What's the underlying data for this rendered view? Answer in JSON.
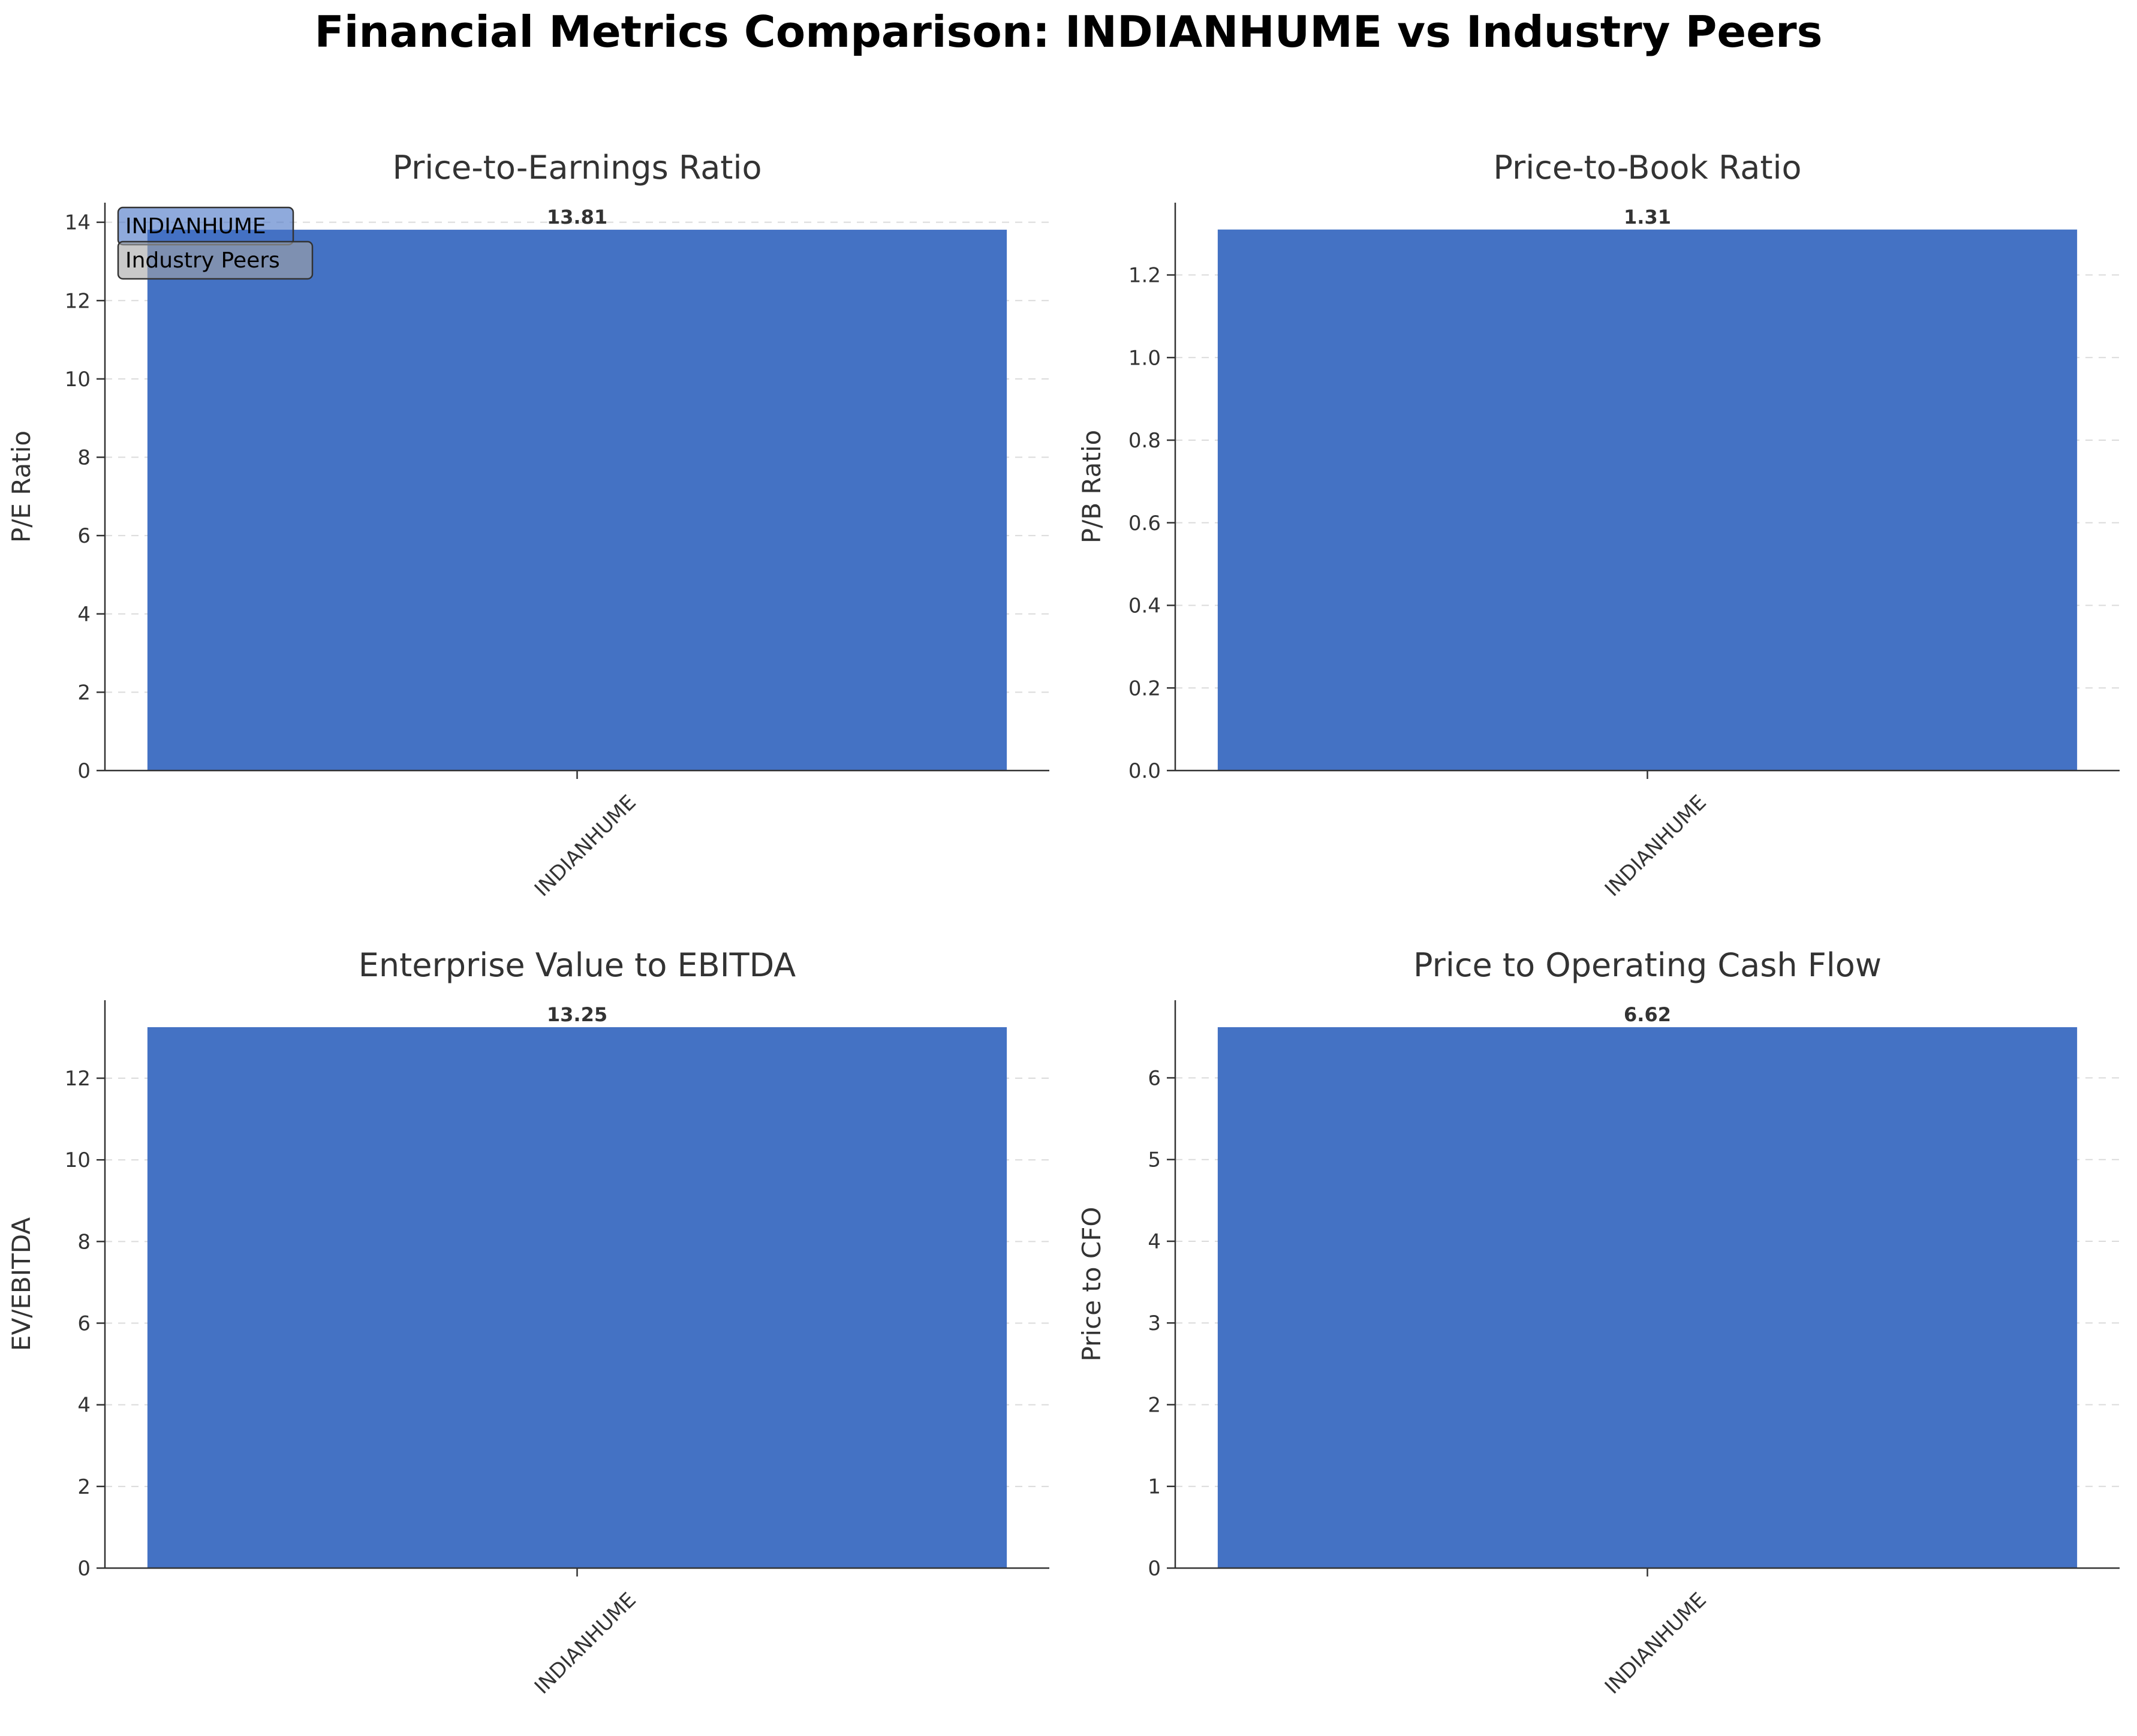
{
  "figure_title": "Financial Metrics Comparison: INDIANHUME vs Industry Peers",
  "legend": {
    "placement": "upper-left of first panel",
    "entries": [
      {
        "label": "INDIANHUME",
        "color": "#4472C4"
      },
      {
        "label": "Industry Peers",
        "color": "#A5A5A5"
      }
    ]
  },
  "colors": {
    "bar": "#4472C4",
    "grid": "#cccccc",
    "axis": "#333333",
    "text": "#333333"
  },
  "chart_data": [
    {
      "type": "bar",
      "title": "Price-to-Earnings Ratio",
      "ylabel": "P/E Ratio",
      "xlabel": "",
      "categories": [
        "INDIANHUME"
      ],
      "values": [
        13.81
      ],
      "value_labels": [
        "13.81"
      ],
      "ylim": [
        0,
        14.5
      ],
      "yticks": [
        0,
        2,
        4,
        6,
        8,
        10,
        12,
        14
      ],
      "ytick_labels": [
        "0",
        "2",
        "4",
        "6",
        "8",
        "10",
        "12",
        "14"
      ],
      "grid": "y dashed",
      "legend": true
    },
    {
      "type": "bar",
      "title": "Price-to-Book Ratio",
      "ylabel": "P/B Ratio",
      "xlabel": "",
      "categories": [
        "INDIANHUME"
      ],
      "values": [
        1.31
      ],
      "value_labels": [
        "1.31"
      ],
      "ylim": [
        0,
        1.375
      ],
      "yticks": [
        0,
        0.2,
        0.4,
        0.6,
        0.8,
        1.0,
        1.2
      ],
      "ytick_labels": [
        "0.0",
        "0.2",
        "0.4",
        "0.6",
        "0.8",
        "1.0",
        "1.2"
      ],
      "grid": "y dashed",
      "legend": false
    },
    {
      "type": "bar",
      "title": "Enterprise Value to EBITDA",
      "ylabel": "EV/EBITDA",
      "xlabel": "",
      "categories": [
        "INDIANHUME"
      ],
      "values": [
        13.25
      ],
      "value_labels": [
        "13.25"
      ],
      "ylim": [
        0,
        13.91
      ],
      "yticks": [
        0,
        2,
        4,
        6,
        8,
        10,
        12
      ],
      "ytick_labels": [
        "0",
        "2",
        "4",
        "6",
        "8",
        "10",
        "12"
      ],
      "grid": "y dashed",
      "legend": false
    },
    {
      "type": "bar",
      "title": "Price to Operating Cash Flow",
      "ylabel": "Price to CFO",
      "xlabel": "",
      "categories": [
        "INDIANHUME"
      ],
      "values": [
        6.62
      ],
      "value_labels": [
        "6.62"
      ],
      "ylim": [
        0,
        6.95
      ],
      "yticks": [
        0,
        1,
        2,
        3,
        4,
        5,
        6
      ],
      "ytick_labels": [
        "0",
        "1",
        "2",
        "3",
        "4",
        "5",
        "6"
      ],
      "grid": "y dashed",
      "legend": false
    }
  ]
}
